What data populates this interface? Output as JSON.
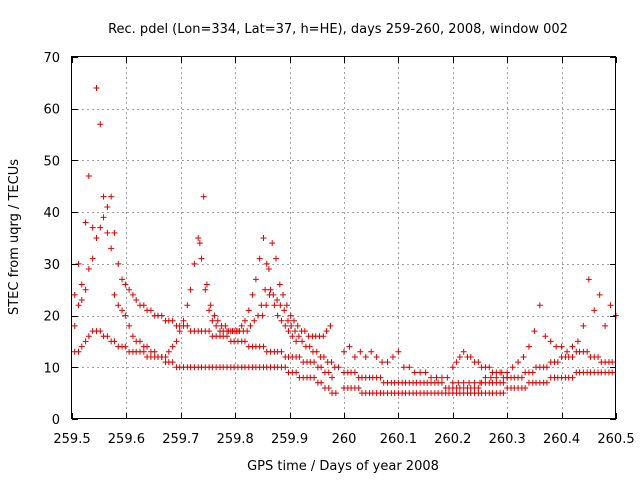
{
  "chart_data": {
    "type": "scatter",
    "title": "Rec. pdel (Lon=334, Lat=37, h=HE), days 259-260, 2008, window 002",
    "xlabel": "GPS time / Days of year 2008",
    "ylabel": "STEC from uqrg / TECUs",
    "xlim": [
      259.5,
      260.5
    ],
    "ylim": [
      0,
      70
    ],
    "xticks": [
      "259.5",
      "259.6",
      "259.7",
      "259.8",
      "259.9",
      "260",
      "260.1",
      "260.2",
      "260.3",
      "260.4",
      "260.5"
    ],
    "yticks": [
      "0",
      "10",
      "20",
      "30",
      "40",
      "50",
      "60",
      "70"
    ],
    "grid": true,
    "marker": "plus",
    "color": "#e00000",
    "series": [
      {
        "x": [
          259.505,
          259.512,
          259.518,
          259.525,
          259.531,
          259.538,
          259.545,
          259.552,
          259.558,
          259.565,
          259.572,
          259.578,
          259.585,
          259.592,
          259.598,
          259.605,
          259.612,
          259.618,
          259.625,
          259.632,
          259.638,
          259.645,
          259.652,
          259.658,
          259.665,
          259.672,
          259.678,
          259.685,
          259.692,
          259.698,
          259.705,
          259.712,
          259.718,
          259.725,
          259.732,
          259.738,
          259.745,
          259.752,
          259.758,
          259.765,
          259.772,
          259.778,
          259.785,
          259.792,
          259.798,
          259.805,
          259.812,
          259.818,
          259.825,
          259.832,
          259.838,
          259.845,
          259.852,
          259.858,
          259.865,
          259.872,
          259.878,
          259.885,
          259.892,
          259.898,
          259.905,
          259.912,
          259.918,
          259.925,
          259.932,
          259.938,
          259.945,
          259.952,
          259.958,
          259.965,
          259.972,
          259.978,
          259.985
        ],
        "y": [
          24,
          30,
          26,
          38,
          47,
          37,
          64,
          57,
          43,
          36,
          33,
          24,
          22,
          21,
          20,
          18,
          16,
          15,
          15,
          14,
          14,
          13,
          13,
          12,
          12,
          11,
          11,
          11,
          10,
          10,
          10,
          10,
          10,
          10,
          10,
          10,
          10,
          10,
          10,
          10,
          10,
          10,
          10,
          10,
          10,
          10,
          10,
          10,
          10,
          10,
          10,
          10,
          10,
          10,
          10,
          10,
          10,
          10,
          10,
          9,
          9,
          9,
          8,
          8,
          8,
          8,
          8,
          7,
          7,
          6,
          6,
          5,
          5
        ]
      },
      {
        "x": [
          259.505,
          259.512,
          259.518,
          259.525,
          259.531,
          259.538,
          259.545,
          259.552,
          259.558,
          259.565,
          259.572,
          259.578,
          259.585,
          259.592,
          259.598,
          259.605,
          259.612,
          259.618,
          259.625,
          259.632,
          259.638,
          259.645,
          259.652,
          259.658,
          259.665,
          259.672,
          259.678,
          259.685,
          259.692,
          259.698,
          259.705,
          259.712,
          259.718,
          259.725,
          259.732,
          259.738,
          259.745,
          259.752,
          259.758,
          259.765,
          259.772,
          259.778,
          259.785,
          259.792,
          259.798,
          259.805,
          259.812,
          259.818,
          259.825,
          259.832,
          259.838,
          259.845,
          259.852,
          259.858,
          259.865,
          259.872,
          259.878,
          259.885,
          259.892,
          259.898,
          259.905,
          259.912,
          259.918,
          259.925,
          259.932,
          259.938,
          259.945,
          259.952,
          259.958,
          259.965,
          259.972,
          259.978
        ],
        "y": [
          18,
          22,
          23,
          25,
          29,
          31,
          35,
          37,
          39,
          41,
          43,
          36,
          30,
          27,
          26,
          25,
          24,
          23,
          22,
          22,
          21,
          21,
          20,
          20,
          20,
          19,
          19,
          19,
          18,
          18,
          18,
          18,
          17,
          17,
          17,
          17,
          17,
          17,
          16,
          16,
          16,
          16,
          16,
          15,
          15,
          15,
          15,
          15,
          14,
          14,
          14,
          14,
          14,
          13,
          13,
          13,
          13,
          13,
          12,
          12,
          12,
          12,
          12,
          11,
          11,
          11,
          11,
          10,
          10,
          9,
          9,
          8
        ]
      },
      {
        "x": [
          259.505,
          259.512,
          259.518,
          259.525,
          259.531,
          259.538,
          259.545,
          259.552,
          259.558,
          259.565,
          259.572,
          259.578,
          259.585,
          259.592,
          259.598,
          259.605,
          259.612,
          259.618,
          259.625,
          259.632,
          259.638,
          259.645,
          259.652,
          259.658,
          259.665,
          259.672,
          259.678,
          259.685,
          259.692,
          259.698,
          259.705,
          259.712,
          259.718,
          259.725,
          259.732,
          259.738,
          259.745,
          259.752,
          259.758,
          259.765,
          259.772,
          259.778,
          259.785,
          259.792,
          259.798,
          259.805,
          259.812,
          259.818,
          259.825,
          259.832,
          259.838,
          259.845,
          259.852,
          259.858,
          259.865,
          259.872,
          259.878,
          259.885,
          259.892,
          259.898,
          259.905,
          259.912
        ],
        "y": [
          13,
          13,
          14,
          15,
          16,
          17,
          17,
          17,
          16,
          16,
          15,
          15,
          14,
          14,
          14,
          13,
          13,
          13,
          13,
          13,
          12,
          12,
          12,
          12,
          12,
          12,
          13,
          14,
          15,
          17,
          19,
          22,
          25,
          30,
          35,
          31,
          25,
          21,
          19,
          18,
          17,
          17,
          17,
          17,
          17,
          17,
          18,
          19,
          21,
          24,
          27,
          31,
          35,
          30,
          25,
          22,
          20,
          19,
          18,
          17,
          16,
          15
        ]
      },
      {
        "x": [
          259.735,
          259.742,
          259.748,
          259.755,
          259.762,
          259.768,
          259.775,
          259.782,
          259.788,
          259.795,
          259.802,
          259.808,
          259.815,
          259.822,
          259.828,
          259.835,
          259.842,
          259.848,
          259.855,
          259.862,
          259.868,
          259.875,
          259.882,
          259.888,
          259.895,
          259.902,
          259.908,
          259.915,
          259.922,
          259.928,
          259.935,
          259.942,
          259.948,
          259.955,
          259.962,
          259.968,
          259.975
        ],
        "y": [
          34,
          43,
          26,
          22,
          20,
          19,
          18,
          18,
          17,
          17,
          17,
          17,
          17,
          17,
          18,
          19,
          20,
          22,
          25,
          29,
          34,
          31,
          26,
          24,
          22,
          20,
          19,
          18,
          17,
          17,
          16,
          16,
          16,
          16,
          16,
          17,
          18
        ]
      },
      {
        "x": [
          259.85,
          259.857,
          259.863,
          259.87,
          259.877,
          259.883,
          259.89,
          259.897,
          259.903,
          259.91,
          259.917,
          259.923,
          259.93,
          259.937,
          259.943,
          259.95,
          259.957,
          259.963,
          259.97,
          259.977,
          259.983,
          259.99
        ],
        "y": [
          20,
          22,
          24,
          24,
          23,
          22,
          21,
          19,
          18,
          17,
          16,
          15,
          14,
          14,
          13,
          13,
          12,
          12,
          11,
          11,
          10,
          10
        ]
      },
      {
        "x": [
          260.0,
          260.007,
          260.013,
          260.02,
          260.027,
          260.033,
          260.04,
          260.047,
          260.053,
          260.06,
          260.067,
          260.073,
          260.08,
          260.087,
          260.093,
          260.1,
          260.107,
          260.113,
          260.12,
          260.127,
          260.133,
          260.14,
          260.147,
          260.153,
          260.16,
          260.167,
          260.173,
          260.18,
          260.187,
          260.193,
          260.2,
          260.207,
          260.213,
          260.22,
          260.227,
          260.233,
          260.24,
          260.247,
          260.253,
          260.26,
          260.267,
          260.273,
          260.28,
          260.287,
          260.293,
          260.3,
          260.307,
          260.313,
          260.32,
          260.327,
          260.333,
          260.34,
          260.347,
          260.353,
          260.36,
          260.367,
          260.373,
          260.38,
          260.387,
          260.393,
          260.4,
          260.407,
          260.413,
          260.42,
          260.427,
          260.433,
          260.44,
          260.447,
          260.453,
          260.46,
          260.467,
          260.473,
          260.48,
          260.487,
          260.493
        ],
        "y": [
          6,
          6,
          6,
          6,
          6,
          5,
          5,
          5,
          5,
          5,
          5,
          5,
          5,
          5,
          5,
          5,
          5,
          5,
          5,
          5,
          5,
          5,
          5,
          5,
          5,
          5,
          5,
          5,
          5,
          5,
          5,
          5,
          5,
          5,
          5,
          5,
          5,
          5,
          5,
          5,
          5,
          5,
          5,
          5,
          5,
          6,
          6,
          6,
          6,
          6,
          6,
          7,
          7,
          7,
          7,
          7,
          7,
          8,
          8,
          8,
          8,
          8,
          8,
          8,
          9,
          9,
          9,
          9,
          9,
          9,
          9,
          9,
          9,
          9,
          9
        ]
      },
      {
        "x": [
          260.0,
          260.007,
          260.013,
          260.02,
          260.027,
          260.033,
          260.04,
          260.047,
          260.053,
          260.06,
          260.067,
          260.073,
          260.08,
          260.087,
          260.093,
          260.1,
          260.107,
          260.113,
          260.12,
          260.127,
          260.133,
          260.14,
          260.147,
          260.153,
          260.16,
          260.167,
          260.173,
          260.18,
          260.187,
          260.193,
          260.2,
          260.207,
          260.213,
          260.22,
          260.227,
          260.233,
          260.24,
          260.247,
          260.253,
          260.26,
          260.267,
          260.273,
          260.28,
          260.287,
          260.293,
          260.3,
          260.307,
          260.313,
          260.32,
          260.327,
          260.333,
          260.34,
          260.347,
          260.353,
          260.36,
          260.367,
          260.373,
          260.38,
          260.387,
          260.393,
          260.4,
          260.407,
          260.413,
          260.42,
          260.427,
          260.433,
          260.44,
          260.447,
          260.453,
          260.46,
          260.467,
          260.473,
          260.48,
          260.487,
          260.493
        ],
        "y": [
          9,
          9,
          9,
          9,
          8,
          8,
          8,
          8,
          8,
          8,
          8,
          7,
          7,
          7,
          7,
          7,
          7,
          7,
          7,
          7,
          7,
          7,
          7,
          7,
          7,
          7,
          7,
          7,
          6,
          6,
          6,
          6,
          6,
          6,
          6,
          6,
          6,
          6,
          7,
          7,
          7,
          7,
          7,
          7,
          7,
          8,
          8,
          8,
          8,
          8,
          9,
          9,
          9,
          10,
          10,
          10,
          10,
          11,
          11,
          11,
          12,
          12,
          12,
          12,
          13,
          13,
          13,
          13,
          12,
          12,
          12,
          11,
          11,
          11,
          11
        ]
      },
      {
        "x": [
          260.0,
          260.01,
          260.02,
          260.03,
          260.04,
          260.05,
          260.06,
          260.07,
          260.08,
          260.09,
          260.1,
          260.11,
          260.12,
          260.13,
          260.14,
          260.15,
          260.16,
          260.17,
          260.18,
          260.19,
          260.2,
          260.21,
          260.22,
          260.23,
          260.24,
          260.25,
          260.26,
          260.27,
          260.28,
          260.29,
          260.3,
          260.31,
          260.32,
          260.33,
          260.34,
          260.35,
          260.36,
          260.37,
          260.38,
          260.39,
          260.4,
          260.41,
          260.42,
          260.43,
          260.44,
          260.45,
          260.46,
          260.47,
          260.48,
          260.49,
          260.5
        ],
        "y": [
          13,
          14,
          12,
          13,
          12,
          13,
          12,
          11,
          11,
          12,
          13,
          10,
          10,
          9,
          9,
          9,
          8,
          8,
          8,
          8,
          7,
          7,
          7,
          7,
          7,
          7,
          8,
          8,
          8,
          9,
          9,
          10,
          11,
          12,
          14,
          17,
          22,
          16,
          15,
          14,
          14,
          13,
          14,
          15,
          18,
          27,
          21,
          24,
          18,
          22,
          20
        ]
      },
      {
        "x": [
          260.2,
          260.207,
          260.213,
          260.22,
          260.227,
          260.233,
          260.24,
          260.247,
          260.253,
          260.26,
          260.267,
          260.273,
          260.28,
          260.287,
          260.293,
          260.3
        ],
        "y": [
          10,
          11,
          12,
          13,
          12,
          12,
          11,
          11,
          10,
          10,
          10,
          9,
          9,
          9,
          8,
          8
        ]
      }
    ]
  }
}
